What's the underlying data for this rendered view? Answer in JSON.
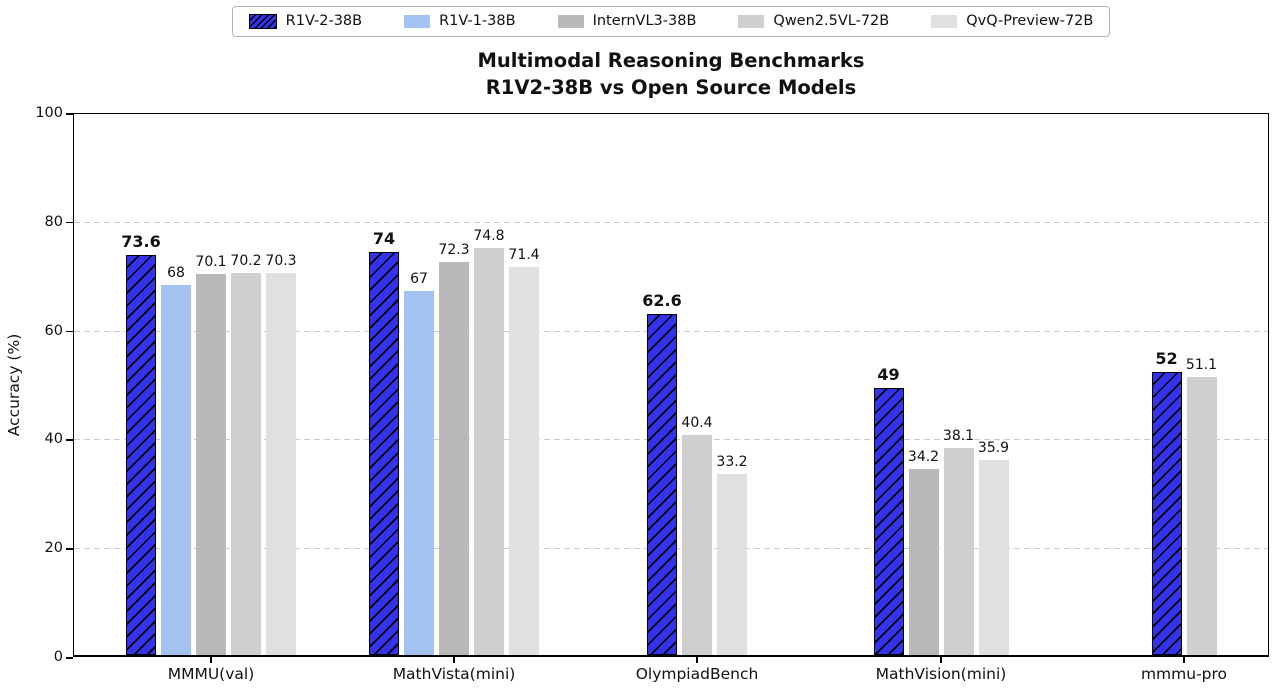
{
  "chart_data": {
    "type": "bar",
    "title_line1": "Multimodal Reasoning Benchmarks",
    "title_line2": "R1V2-38B vs Open Source Models",
    "ylabel": "Accuracy (%)",
    "ylim": [
      0,
      100
    ],
    "yticks": [
      0,
      20,
      40,
      60,
      80,
      100
    ],
    "grid": {
      "horizontal": true,
      "style": "dashed",
      "color": "#cbcbcb",
      "at": [
        20,
        40,
        60,
        80
      ]
    },
    "legend_position": "top-center",
    "categories": [
      "MMMU(val)",
      "MathVista(mini)",
      "OlympiadBench",
      "MathVision(mini)",
      "mmmu-pro"
    ],
    "series": [
      {
        "name": "R1V-2-38B",
        "color": "#3333eb",
        "hatch": "/",
        "edge_color": "#000000",
        "emphasis": true,
        "values": [
          73.6,
          74,
          62.6,
          49,
          52
        ]
      },
      {
        "name": "R1V-1-38B",
        "color": "#a4c2f0",
        "hatch": null,
        "emphasis": false,
        "values": [
          68,
          67,
          null,
          null,
          null
        ]
      },
      {
        "name": "InternVL3-38B",
        "color": "#b9b9b9",
        "hatch": null,
        "emphasis": false,
        "values": [
          70.1,
          72.3,
          null,
          34.2,
          null
        ]
      },
      {
        "name": "Qwen2.5VL-72B",
        "color": "#cfcfcf",
        "hatch": null,
        "emphasis": false,
        "values": [
          70.2,
          74.8,
          40.4,
          38.1,
          51.1
        ]
      },
      {
        "name": "QvQ-Preview-72B",
        "color": "#e0e0e0",
        "hatch": null,
        "emphasis": false,
        "values": [
          70.3,
          71.4,
          33.2,
          35.9,
          null
        ]
      }
    ]
  }
}
